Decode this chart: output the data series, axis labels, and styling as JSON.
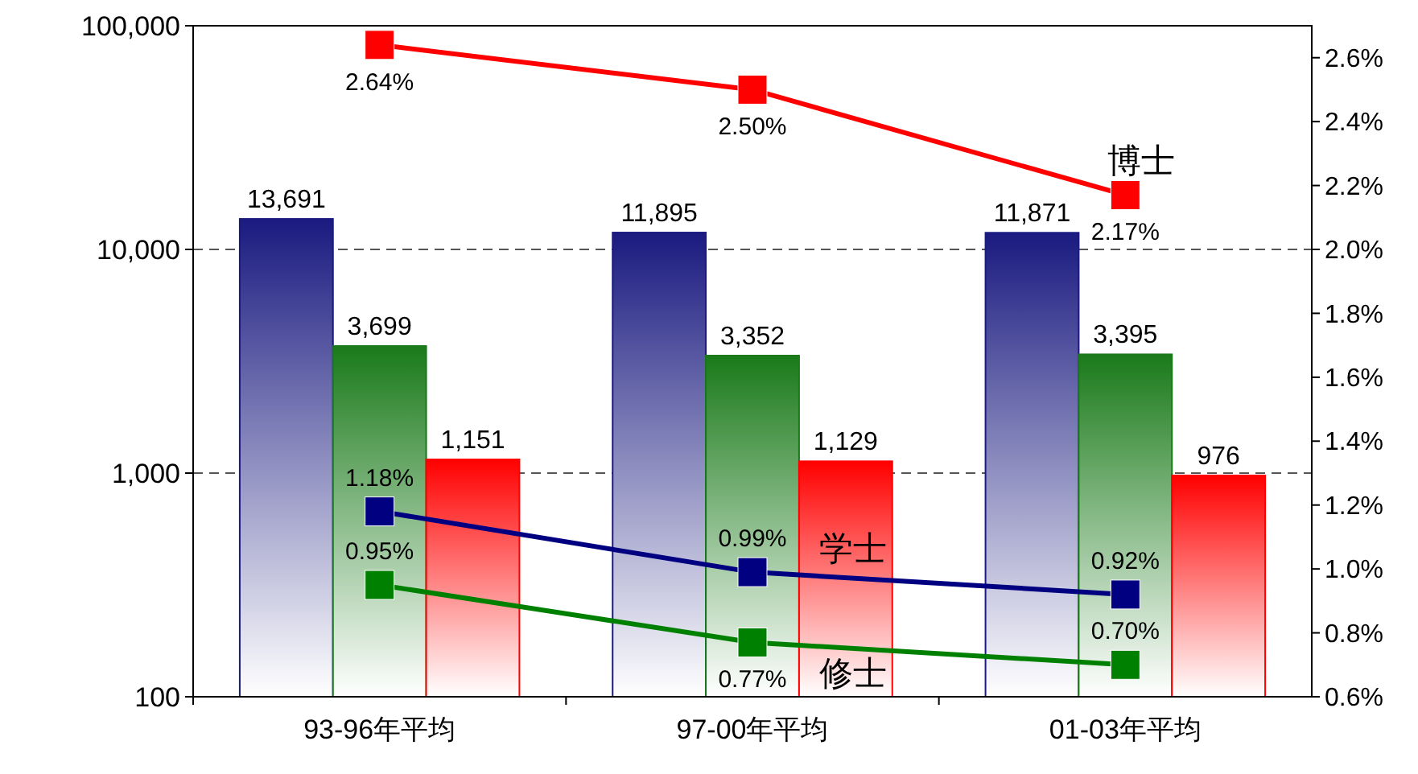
{
  "chart_data": {
    "type": "bar",
    "log": "y",
    "categories": [
      "93-96年平均",
      "97-00年平均",
      "01-03年平均"
    ],
    "ylim": [
      100,
      100000
    ],
    "yticks": [
      100,
      {
        "value": 1000,
        "label": "1,000"
      },
      {
        "value": 10000,
        "label": "10,000"
      },
      {
        "value": 100000,
        "label": "100,000"
      }
    ],
    "y2lim": [
      0.6,
      2.7
    ],
    "y2ticks": [
      {
        "value": 0.6,
        "label": "0.6%"
      },
      {
        "value": 0.8,
        "label": "0.8%"
      },
      {
        "value": 1.0,
        "label": "1.0%"
      },
      {
        "value": 1.2,
        "label": "1.2%"
      },
      {
        "value": 1.4,
        "label": "1.4%"
      },
      {
        "value": 1.6,
        "label": "1.6%"
      },
      {
        "value": 1.8,
        "label": "1.8%"
      },
      {
        "value": 2.0,
        "label": "2.0%"
      },
      {
        "value": 2.2,
        "label": "2.2%"
      },
      {
        "value": 2.4,
        "label": "2.4%"
      },
      {
        "value": 2.6,
        "label": "2.6%"
      }
    ],
    "grid": "y",
    "line_style": "solid",
    "marker": "square",
    "series": [
      {
        "color": "#1a1a80",
        "values": [
          13691,
          11895,
          11871
        ],
        "value_labels": [
          "13,691",
          "11,895",
          "11,871"
        ]
      },
      {
        "color": "#1a7a1a",
        "values": [
          3699,
          3352,
          3395
        ],
        "value_labels": [
          "3,699",
          "3,352",
          "3,395"
        ]
      },
      {
        "color": "#ff0000",
        "values": [
          1151,
          1129,
          976
        ],
        "value_labels": [
          "1,151",
          "1,129",
          "976"
        ]
      },
      {
        "type": "line",
        "axis": "y2",
        "name": "博士",
        "color": "#ff0000",
        "values": [
          2.64,
          2.5,
          2.17
        ],
        "value_labels": [
          "2.64%",
          "2.50%",
          "2.17%"
        ]
      },
      {
        "type": "line",
        "axis": "y2",
        "name": "学士",
        "color": "#000080",
        "values": [
          1.18,
          0.99,
          0.92
        ],
        "value_labels": [
          "1.18%",
          "0.99%",
          "0.92%"
        ]
      },
      {
        "type": "line",
        "axis": "y2",
        "name": "修士",
        "color": "#008000",
        "values": [
          0.95,
          0.77,
          0.7
        ],
        "value_labels": [
          "0.95%",
          "0.77%",
          "0.70%"
        ]
      }
    ]
  }
}
